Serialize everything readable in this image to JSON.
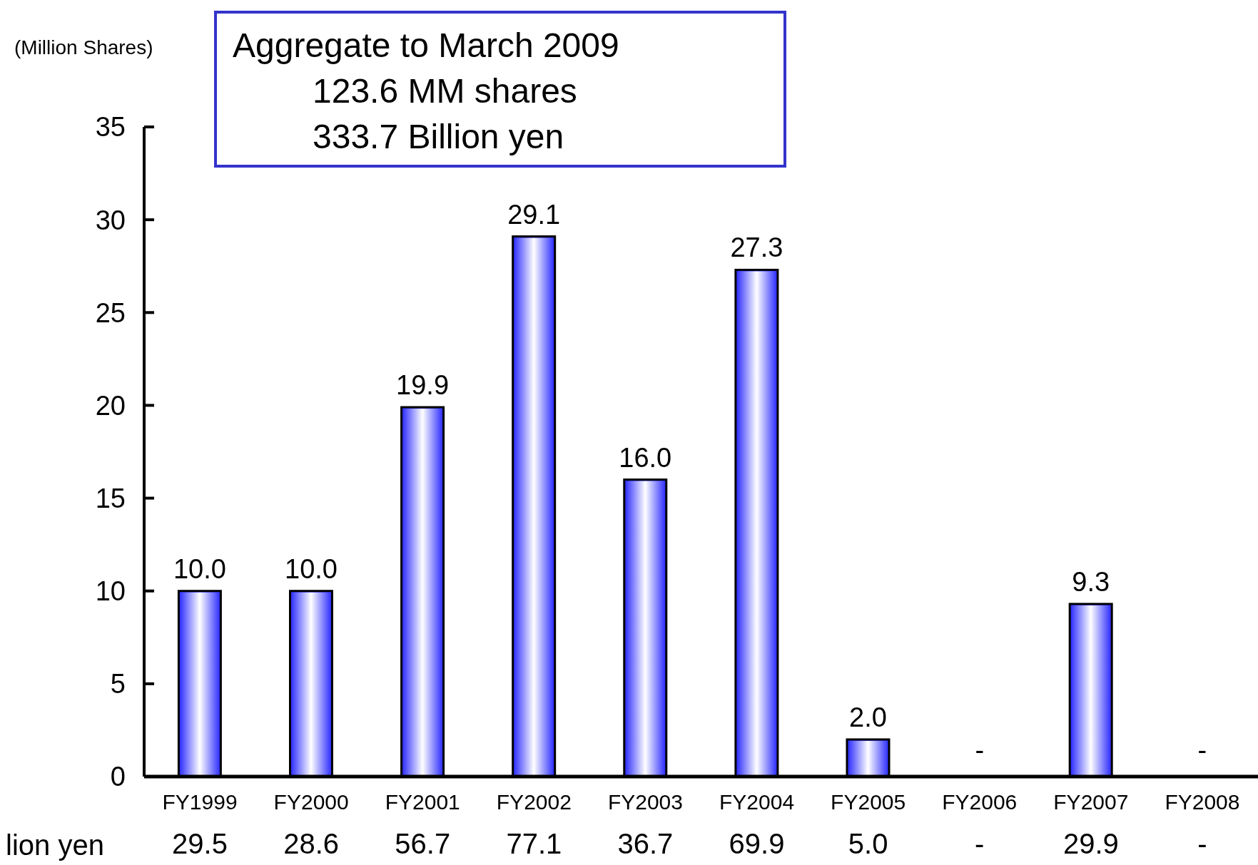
{
  "chart_data": {
    "type": "bar",
    "ylabel": "(Million Shares)",
    "categories": [
      "FY1999",
      "FY2000",
      "FY2001",
      "FY2002",
      "FY2003",
      "FY2004",
      "FY2005",
      "FY2006",
      "FY2007",
      "FY2008"
    ],
    "values": [
      10.0,
      10.0,
      19.9,
      29.1,
      16.0,
      27.3,
      2.0,
      null,
      9.3,
      null
    ],
    "value_labels": [
      "10.0",
      "10.0",
      "19.9",
      "29.1",
      "16.0",
      "27.3",
      "2.0",
      "-",
      "9.3",
      "-"
    ],
    "color": "#3333ff",
    "ylim": [
      0,
      35
    ],
    "yticks": [
      0,
      5,
      10,
      15,
      20,
      25,
      30,
      35
    ],
    "annotations": [
      "Aggregate to March 2009",
      "123.6 MM shares",
      "333.7 Billion yen",
      "lion yen",
      "29.5",
      "28.6",
      "56.7",
      "77.1",
      "36.7",
      "69.9",
      "5.0",
      "-",
      "29.9",
      "-"
    ]
  }
}
